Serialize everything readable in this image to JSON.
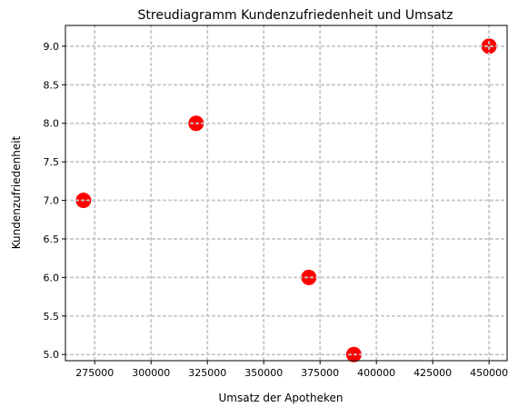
{
  "chart_data": {
    "type": "scatter",
    "title": "Streudiagramm Kundenzufriedenheit und Umsatz",
    "xlabel": "Umsatz der Apotheken",
    "ylabel": "Kundenzufriedenheit",
    "xlim": [
      262000,
      458000
    ],
    "ylim": [
      4.92,
      9.27
    ],
    "xticks": [
      275000,
      300000,
      325000,
      350000,
      375000,
      400000,
      425000,
      450000
    ],
    "xtick_labels": [
      "275000",
      "300000",
      "325000",
      "350000",
      "375000",
      "400000",
      "425000",
      "450000"
    ],
    "yticks": [
      5.0,
      5.5,
      6.0,
      6.5,
      7.0,
      7.5,
      8.0,
      8.5,
      9.0
    ],
    "ytick_labels": [
      "5.0",
      "5.5",
      "6.0",
      "6.5",
      "7.0",
      "7.5",
      "8.0",
      "8.5",
      "9.0"
    ],
    "grid": true,
    "marker_color": "#ff0000",
    "points": [
      {
        "x": 270000,
        "y": 7.0
      },
      {
        "x": 320000,
        "y": 8.0
      },
      {
        "x": 370000,
        "y": 6.0
      },
      {
        "x": 390000,
        "y": 5.0
      },
      {
        "x": 450000,
        "y": 9.0
      }
    ]
  }
}
